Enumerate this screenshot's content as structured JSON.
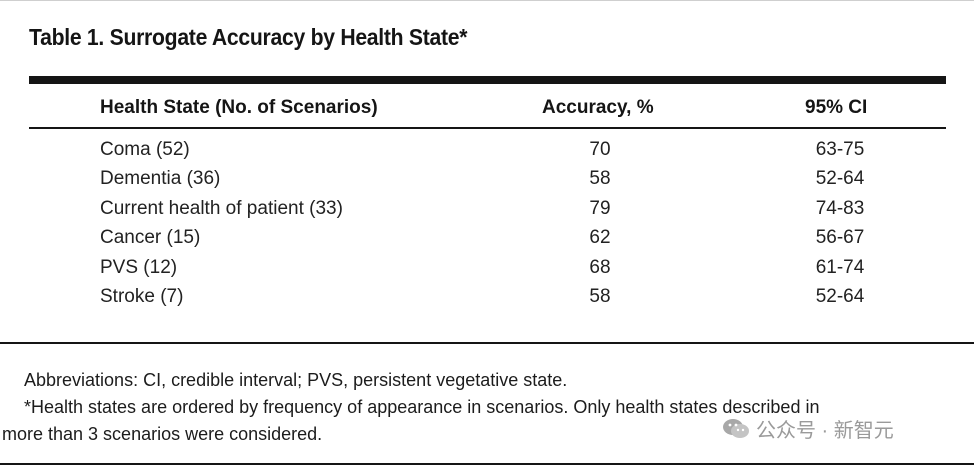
{
  "table": {
    "title": "Table 1. Surrogate Accuracy by Health State*",
    "headers": [
      "Health State (No. of Scenarios)",
      "Accuracy, %",
      "95% CI"
    ],
    "rows": [
      [
        "Coma (52)",
        "70",
        "63-75"
      ],
      [
        "Dementia (36)",
        "58",
        "52-64"
      ],
      [
        "Current health of patient (33)",
        "79",
        "74-83"
      ],
      [
        "Cancer (15)",
        "62",
        "56-67"
      ],
      [
        "PVS (12)",
        "68",
        "61-74"
      ],
      [
        "Stroke (7)",
        "58",
        "52-64"
      ]
    ]
  },
  "footnotes": {
    "abbreviations": "Abbreviations: CI, credible interval; PVS, persistent vegetative state.",
    "note_line1": "*Health states are ordered by frequency of appearance in scenarios. Only health states described in",
    "note_line2": "more than 3 scenarios were considered."
  },
  "watermark": {
    "text": "公众号 · 新智元",
    "icon": "wechat-icon"
  }
}
